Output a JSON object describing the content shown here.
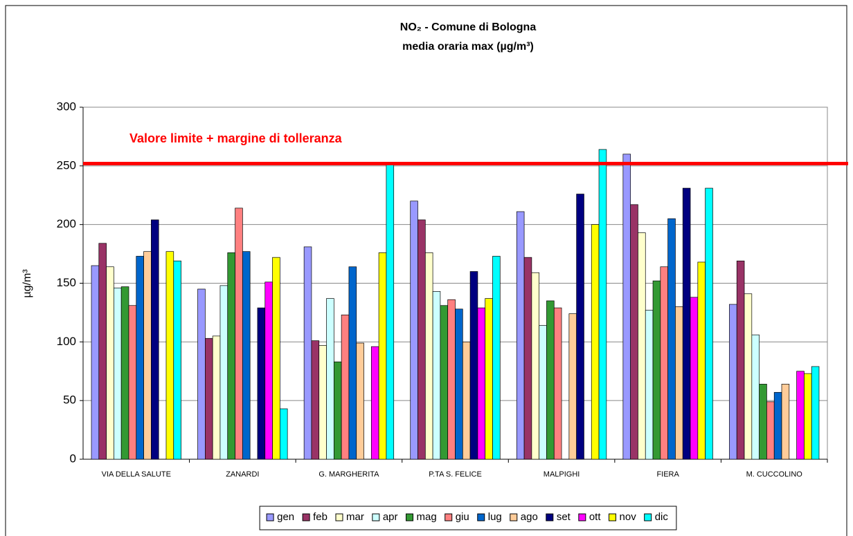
{
  "chart_data": {
    "type": "bar",
    "title": "NO₂ - Comune di Bologna",
    "subtitle": "media oraria max (µg/m³)",
    "y_label": "µg/m³",
    "categories": [
      "VIA DELLA SALUTE",
      "ZANARDI",
      "G. MARGHERITA",
      "P.TA S. FELICE",
      "MALPIGHI",
      "FIERA",
      "M. CUCCOLINO"
    ],
    "series": [
      {
        "name": "gen",
        "color": "#9999ff",
        "values": [
          165,
          145,
          181,
          220,
          211,
          260,
          132
        ]
      },
      {
        "name": "feb",
        "color": "#993366",
        "values": [
          184,
          103,
          101,
          204,
          172,
          217,
          169
        ]
      },
      {
        "name": "mar",
        "color": "#ffffcc",
        "values": [
          164,
          105,
          97,
          176,
          159,
          193,
          141
        ]
      },
      {
        "name": "apr",
        "color": "#ccffff",
        "values": [
          146,
          148,
          137,
          143,
          114,
          127,
          106
        ]
      },
      {
        "name": "mag",
        "color": "#339933",
        "values": [
          147,
          176,
          83,
          131,
          135,
          152,
          64
        ]
      },
      {
        "name": "giu",
        "color": "#ff8080",
        "values": [
          131,
          214,
          123,
          136,
          129,
          164,
          49
        ]
      },
      {
        "name": "lug",
        "color": "#0066cc",
        "values": [
          173,
          177,
          164,
          128,
          null,
          205,
          57
        ]
      },
      {
        "name": "ago",
        "color": "#ffcc99",
        "values": [
          177,
          null,
          99,
          100,
          124,
          130,
          64
        ]
      },
      {
        "name": "set",
        "color": "#000080",
        "values": [
          204,
          129,
          null,
          160,
          226,
          231,
          null
        ]
      },
      {
        "name": "ott",
        "color": "#ff00ff",
        "values": [
          null,
          151,
          96,
          129,
          null,
          138,
          75
        ]
      },
      {
        "name": "nov",
        "color": "#ffff00",
        "values": [
          177,
          172,
          176,
          137,
          200,
          168,
          73
        ]
      },
      {
        "name": "dic",
        "color": "#00ffff",
        "values": [
          169,
          43,
          251,
          173,
          264,
          231,
          79
        ]
      }
    ],
    "reference_line": {
      "value": 252,
      "label": "Valore limite + margine di tolleranza",
      "color": "#ff0000"
    },
    "ylim": [
      0,
      300
    ],
    "yticks": [
      0,
      50,
      100,
      150,
      200,
      250,
      300
    ],
    "grid": true,
    "legend": "bottom"
  }
}
